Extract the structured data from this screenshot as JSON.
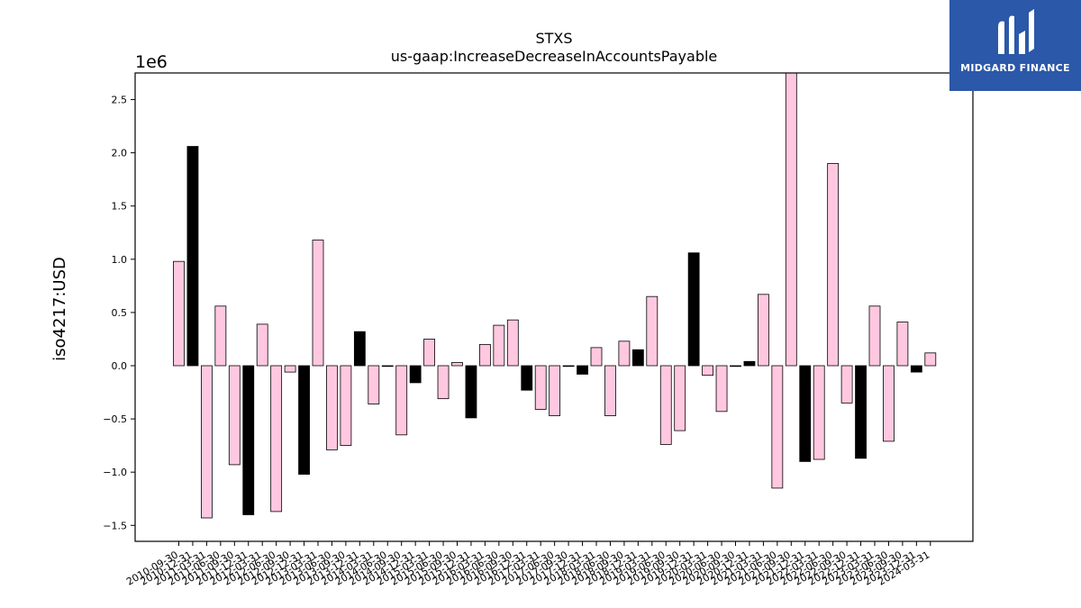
{
  "chart_data": {
    "type": "bar",
    "title": "STXS",
    "subtitle": "us-gaap:IncreaseDecreaseInAccountsPayable",
    "ylabel": "iso4217:USD",
    "xlabel": "",
    "y_scale_label": "1e6",
    "ylim": [
      -1.65,
      2.75
    ],
    "yticks": [
      -1.5,
      -1.0,
      -0.5,
      0.0,
      0.5,
      1.0,
      1.5,
      2.0,
      2.5
    ],
    "ytick_labels": [
      "−1.5",
      "−1.0",
      "−0.5",
      "0.0",
      "0.5",
      "1.0",
      "1.5",
      "2.0",
      "2.5"
    ],
    "grid": false,
    "colors": {
      "pink": "#ffc8e0",
      "black": "#000000",
      "edge": "#000000"
    },
    "categories": [
      "2010-09-30",
      "2010-12-31",
      "2011-03-31",
      "2011-06-30",
      "2011-09-30",
      "2011-12-31",
      "2012-03-31",
      "2012-06-30",
      "2012-09-30",
      "2012-12-31",
      "2013-03-31",
      "2013-06-30",
      "2013-09-30",
      "2013-12-31",
      "2014-03-31",
      "2014-06-30",
      "2014-09-30",
      "2014-12-31",
      "2015-03-31",
      "2015-06-30",
      "2015-09-30",
      "2015-12-31",
      "2016-03-31",
      "2016-06-30",
      "2016-09-30",
      "2016-12-31",
      "2017-03-31",
      "2017-06-30",
      "2017-09-30",
      "2017-12-31",
      "2018-03-31",
      "2018-06-30",
      "2018-09-30",
      "2018-12-31",
      "2019-03-31",
      "2019-06-30",
      "2019-09-30",
      "2019-12-31",
      "2020-03-31",
      "2020-06-30",
      "2020-09-30",
      "2020-12-31",
      "2021-03-31",
      "2021-06-30",
      "2021-09-30",
      "2021-12-31",
      "2022-03-31",
      "2022-06-30",
      "2022-09-30",
      "2022-12-31",
      "2023-03-31",
      "2023-06-30",
      "2023-09-30",
      "2023-12-31",
      "2024-03-31"
    ],
    "values": [
      0.98,
      2.06,
      -1.43,
      0.56,
      -0.93,
      -1.4,
      0.39,
      -1.37,
      -0.06,
      -1.02,
      1.18,
      -0.79,
      -0.75,
      0.32,
      -0.36,
      0.0,
      -0.65,
      -0.16,
      0.25,
      -0.31,
      0.03,
      -0.49,
      0.2,
      0.38,
      0.43,
      -0.23,
      -0.41,
      -0.47,
      0.0,
      -0.08,
      0.17,
      -0.47,
      0.23,
      0.15,
      0.65,
      -0.74,
      -0.61,
      1.06,
      -0.09,
      -0.43,
      0.0,
      0.04,
      0.67,
      -1.15,
      2.75,
      -0.9,
      -0.88,
      1.9,
      -0.35,
      -0.87,
      0.56,
      -0.71,
      0.41,
      -0.06,
      0.12
    ],
    "bar_colors": [
      "pink",
      "black",
      "pink",
      "pink",
      "pink",
      "black",
      "pink",
      "pink",
      "pink",
      "black",
      "pink",
      "pink",
      "pink",
      "black",
      "pink",
      "pink",
      "pink",
      "black",
      "pink",
      "pink",
      "pink",
      "black",
      "pink",
      "pink",
      "pink",
      "black",
      "pink",
      "pink",
      "pink",
      "black",
      "pink",
      "pink",
      "pink",
      "black",
      "pink",
      "pink",
      "pink",
      "black",
      "pink",
      "pink",
      "pink",
      "black",
      "pink",
      "pink",
      "pink",
      "black",
      "pink",
      "pink",
      "pink",
      "black",
      "pink",
      "pink",
      "pink",
      "black",
      "pink"
    ]
  },
  "logo": {
    "text": "MIDGARD FINANCE",
    "icon": "midgard-logo-icon",
    "background": "#2b58a8"
  }
}
